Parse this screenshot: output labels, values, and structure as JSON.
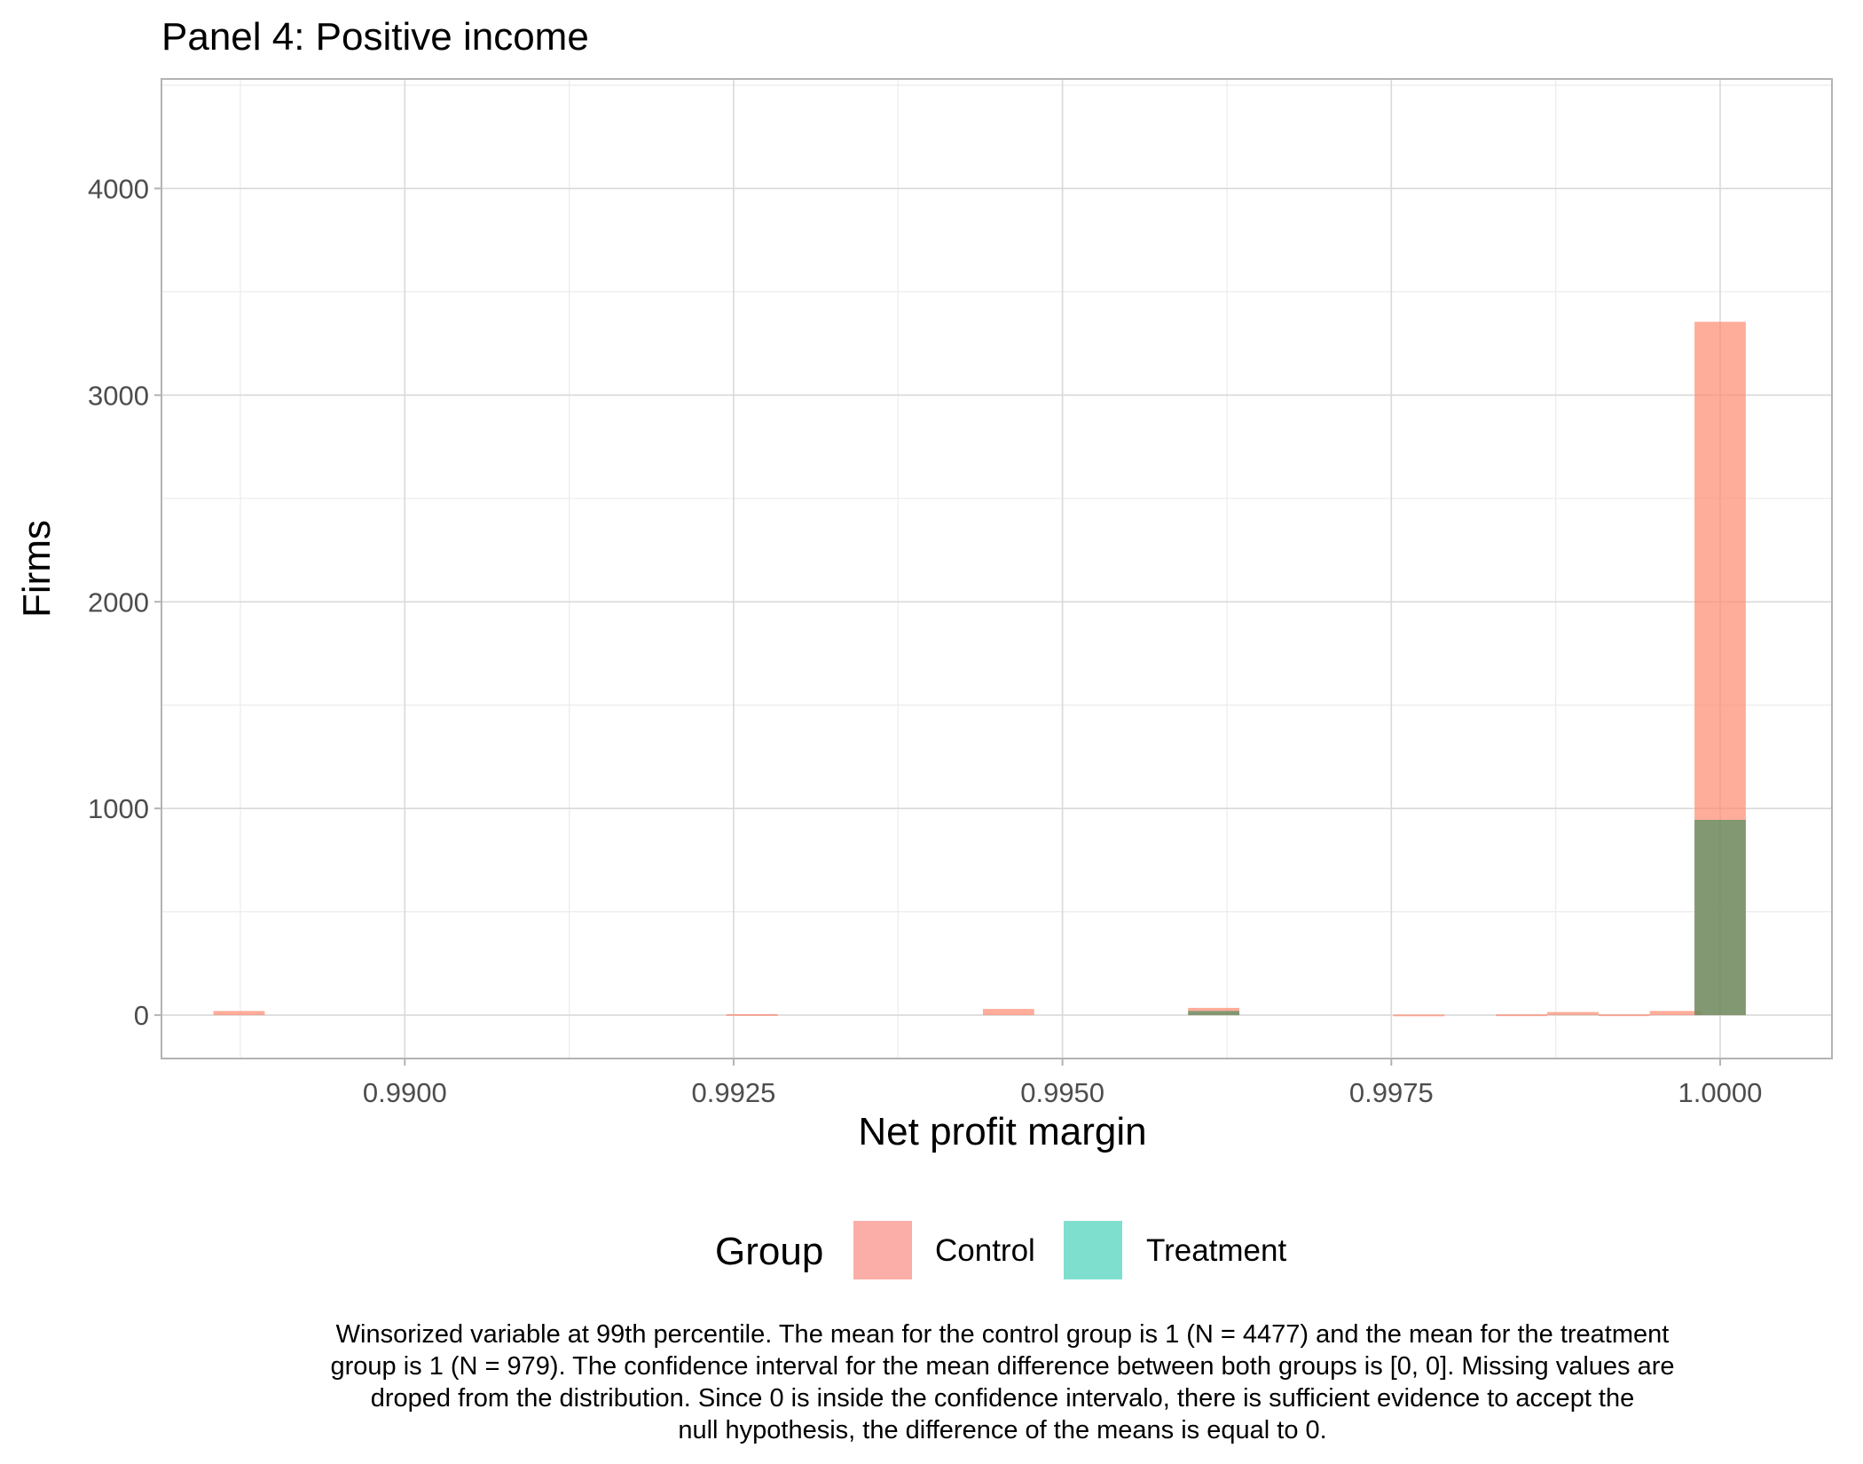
{
  "chart_data": {
    "type": "bar",
    "title": "Panel 4: Positive income",
    "xlabel": "Net profit margin",
    "ylabel": "Firms",
    "xlim": [
      0.98815,
      1.00085
    ],
    "ylim": [
      -210,
      4530
    ],
    "x_ticks": [
      0.99,
      0.9925,
      0.995,
      0.9975,
      1.0
    ],
    "x_tick_labels": [
      "0.9900",
      "0.9925",
      "0.9950",
      "0.9975",
      "1.0000"
    ],
    "y_ticks": [
      0,
      1000,
      2000,
      3000,
      4000
    ],
    "y_tick_labels": [
      "0",
      "1000",
      "2000",
      "3000",
      "4000"
    ],
    "bin_width": 0.00039,
    "grid": true,
    "legend": {
      "title": "Group",
      "placement": "bottom",
      "entries": [
        {
          "name": "Control",
          "color": "#F8766D"
        },
        {
          "name": "Treatment",
          "color": "#00BFA0"
        }
      ]
    },
    "series": [
      {
        "name": "Control",
        "color": "#FD8A70",
        "bins": [
          {
            "x": 0.98874,
            "y": 20
          },
          {
            "x": 0.99264,
            "y": 5
          },
          {
            "x": 0.99459,
            "y": 30
          },
          {
            "x": 0.99615,
            "y": 35
          },
          {
            "x": 0.99771,
            "y": 3
          },
          {
            "x": 0.99849,
            "y": 4
          },
          {
            "x": 0.99888,
            "y": 15
          },
          {
            "x": 0.99927,
            "y": 4
          },
          {
            "x": 0.99966,
            "y": 20
          },
          {
            "x": 1.0,
            "y": 3355
          }
        ]
      },
      {
        "name": "Treatment",
        "color": "#2E8B57",
        "bins": [
          {
            "x": 0.99615,
            "y": 20
          },
          {
            "x": 1.0,
            "y": 945
          }
        ]
      }
    ]
  },
  "caption": {
    "lines": [
      "Winsorized variable at 99th percentile. The mean for the control group is 1 (N = 4477) and the mean for the treatment",
      "group is 1 (N = 979). The confidence interval for the mean difference between both groups is [0, 0]. Missing values are",
      "droped from the distribution. Since 0 is inside the confidence intervalo, there is sufficient evidence to accept the",
      "null hypothesis, the difference of the means is equal to 0."
    ]
  }
}
